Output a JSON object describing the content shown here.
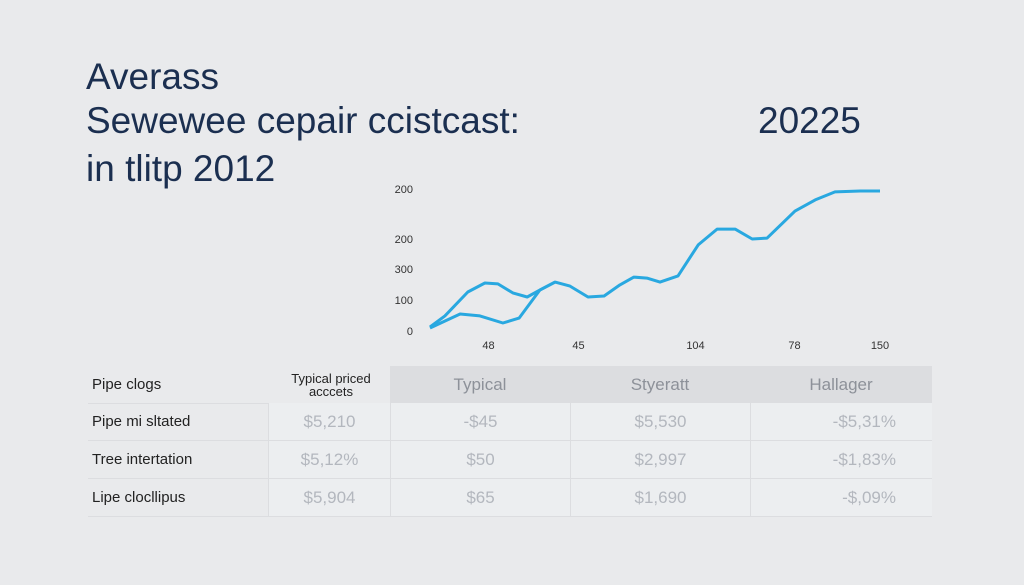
{
  "header": {
    "title_lines": [
      "Averass",
      "Sewewee cepair ccistcast:",
      "in tlitp 2012"
    ],
    "year": "20225"
  },
  "chart_data": {
    "type": "line",
    "xlim": [
      0,
      100
    ],
    "ylim": [
      0,
      460
    ],
    "xticks": [
      {
        "value": 13,
        "label": "48"
      },
      {
        "value": 33,
        "label": "45"
      },
      {
        "value": 59,
        "label": "104"
      },
      {
        "value": 81,
        "label": "78"
      },
      {
        "value": 100,
        "label": "150"
      }
    ],
    "yticks": [
      0,
      100,
      {
        "value": 200,
        "label": "300"
      },
      {
        "value": 297,
        "label": "200"
      },
      {
        "value": 458,
        "label": "200"
      }
    ],
    "series": [
      {
        "color": "#29a8e0",
        "x": [
          0,
          3.3,
          8.4,
          12.2,
          15.1,
          18.4,
          21.6,
          24.4,
          27.8,
          31.1,
          35.1,
          38.7,
          42.2,
          45.3,
          48.2,
          51.1,
          55.1,
          59.6,
          63.8,
          67.8,
          71.6,
          74.9,
          81.1,
          85.6,
          90,
          95.6,
          100
        ],
        "values": [
          16,
          52,
          129,
          158,
          155,
          126,
          113,
          135,
          161,
          148,
          113,
          116,
          152,
          177,
          174,
          161,
          181,
          281,
          332,
          332,
          300,
          303,
          390,
          426,
          452,
          455,
          455
        ]
      },
      {
        "color": "#29a8e0",
        "x": [
          0,
          6.7,
          11.1,
          16.2,
          19.8,
          24.4,
          27.8
        ],
        "values": [
          13,
          58,
          52,
          29,
          45,
          135,
          161
        ]
      }
    ]
  },
  "table": {
    "header": [
      "Pipe clogs",
      [
        "Typical priced",
        "acccets"
      ],
      "Typical",
      "Styeratt",
      "Hallager"
    ],
    "rows": [
      [
        "Pipe mi sltated",
        "$5,210",
        "-$45",
        "$5,530",
        "-$5,31%"
      ],
      [
        "Tree intertation",
        "$5,12%",
        "$50",
        "$2,997",
        "-$1,83%"
      ],
      [
        "Lipe clocllipus",
        "$5,904",
        "$65",
        "$1,690",
        "-$,09%"
      ]
    ]
  }
}
